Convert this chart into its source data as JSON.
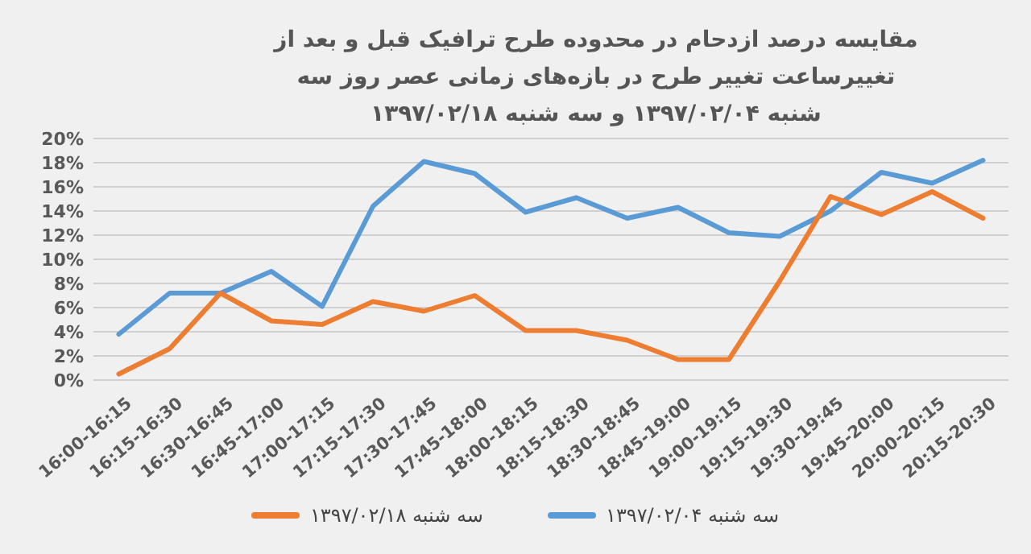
{
  "chart_data": {
    "type": "line",
    "title": "مقایسه درصد ازدحام در محدوده طرح ترافیک قبل و بعد از تغییرساعت تغییر طرح در بازه‌های زمانی عصر روز سه شنبه ۱۳۹۷/۰۲/۰۴ و سه شنبه ۱۳۹۷/۰۲/۱۸",
    "categories": [
      "16:00-16:15",
      "16:15-16:30",
      "16:30-16:45",
      "16:45-17:00",
      "17:00-17:15",
      "17:15-17:30",
      "17:30-17:45",
      "17:45-18:00",
      "18:00-18:15",
      "18:15-18:30",
      "18:30-18:45",
      "18:45-19:00",
      "19:00-19:15",
      "19:15-19:30",
      "19:30-19:45",
      "19:45-20:00",
      "20:00-20:15",
      "20:15-20:30"
    ],
    "series": [
      {
        "name": "سه شنبه ۱۳۹۷/۰۲/۰۴",
        "color": "#5b9bd5",
        "values": [
          3.8,
          7.2,
          7.2,
          9.0,
          6.1,
          14.4,
          18.1,
          17.1,
          13.9,
          15.1,
          13.4,
          14.3,
          12.2,
          11.9,
          14.0,
          17.2,
          16.3,
          18.2
        ]
      },
      {
        "name": "سه شنبه ۱۳۹۷/۰۲/۱۸",
        "color": "#ed7d31",
        "values": [
          0.5,
          2.6,
          7.2,
          4.9,
          4.6,
          6.5,
          5.7,
          7.0,
          4.1,
          4.1,
          3.3,
          1.7,
          1.7,
          8.2,
          15.2,
          13.7,
          15.6,
          13.4
        ]
      }
    ],
    "ylim": [
      0,
      20
    ],
    "yticks": [
      {
        "value": 0,
        "label": "0%"
      },
      {
        "value": 2,
        "label": "2%"
      },
      {
        "value": 4,
        "label": "4%"
      },
      {
        "value": 6,
        "label": "6%"
      },
      {
        "value": 8,
        "label": "8%"
      },
      {
        "value": 10,
        "label": "10%"
      },
      {
        "value": 12,
        "label": "12%"
      },
      {
        "value": 14,
        "label": "14%"
      },
      {
        "value": 16,
        "label": "16%"
      },
      {
        "value": 18,
        "label": "18%"
      },
      {
        "value": 20,
        "label": "20%"
      }
    ],
    "grid": "y",
    "legend": "bottom",
    "marker": "none",
    "line_style": "solid"
  }
}
